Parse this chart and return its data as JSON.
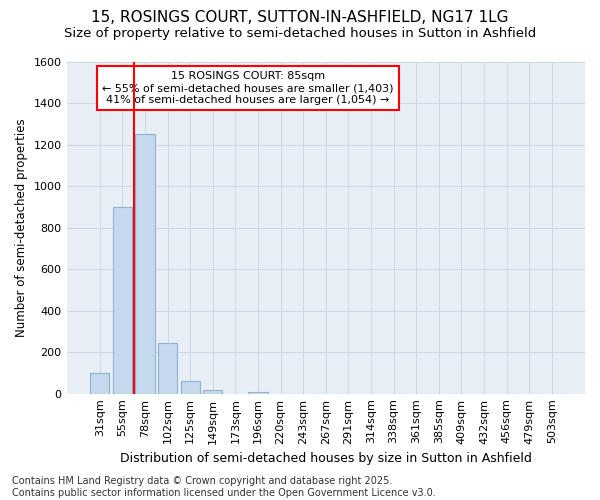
{
  "title1": "15, ROSINGS COURT, SUTTON-IN-ASHFIELD, NG17 1LG",
  "title2": "Size of property relative to semi-detached houses in Sutton in Ashfield",
  "xlabel": "Distribution of semi-detached houses by size in Sutton in Ashfield",
  "ylabel": "Number of semi-detached properties",
  "categories": [
    "31sqm",
    "55sqm",
    "78sqm",
    "102sqm",
    "125sqm",
    "149sqm",
    "173sqm",
    "196sqm",
    "220sqm",
    "243sqm",
    "267sqm",
    "291sqm",
    "314sqm",
    "338sqm",
    "361sqm",
    "385sqm",
    "409sqm",
    "432sqm",
    "456sqm",
    "479sqm",
    "503sqm"
  ],
  "values": [
    100,
    900,
    1250,
    245,
    60,
    20,
    0,
    10,
    0,
    0,
    0,
    0,
    0,
    0,
    0,
    0,
    0,
    0,
    0,
    0,
    0
  ],
  "bar_color": "#c6d9ec",
  "bar_edge_color": "#8db4d4",
  "vline_x": 1.5,
  "vline_color": "red",
  "ylim": [
    0,
    1600
  ],
  "yticks": [
    0,
    200,
    400,
    600,
    800,
    1000,
    1200,
    1400,
    1600
  ],
  "annotation_title": "15 ROSINGS COURT: 85sqm",
  "annotation_line1": "← 55% of semi-detached houses are smaller (1,403)",
  "annotation_line2": "41% of semi-detached houses are larger (1,054) →",
  "annotation_box_color": "white",
  "annotation_box_edge_color": "red",
  "footer": "Contains HM Land Registry data © Crown copyright and database right 2025.\nContains public sector information licensed under the Open Government Licence v3.0.",
  "background_color": "white",
  "plot_bg_color": "#e8eef5",
  "grid_color": "#c8d4e0",
  "title1_fontsize": 11,
  "title2_fontsize": 9.5,
  "xlabel_fontsize": 9,
  "ylabel_fontsize": 8.5,
  "tick_fontsize": 8,
  "footer_fontsize": 7
}
